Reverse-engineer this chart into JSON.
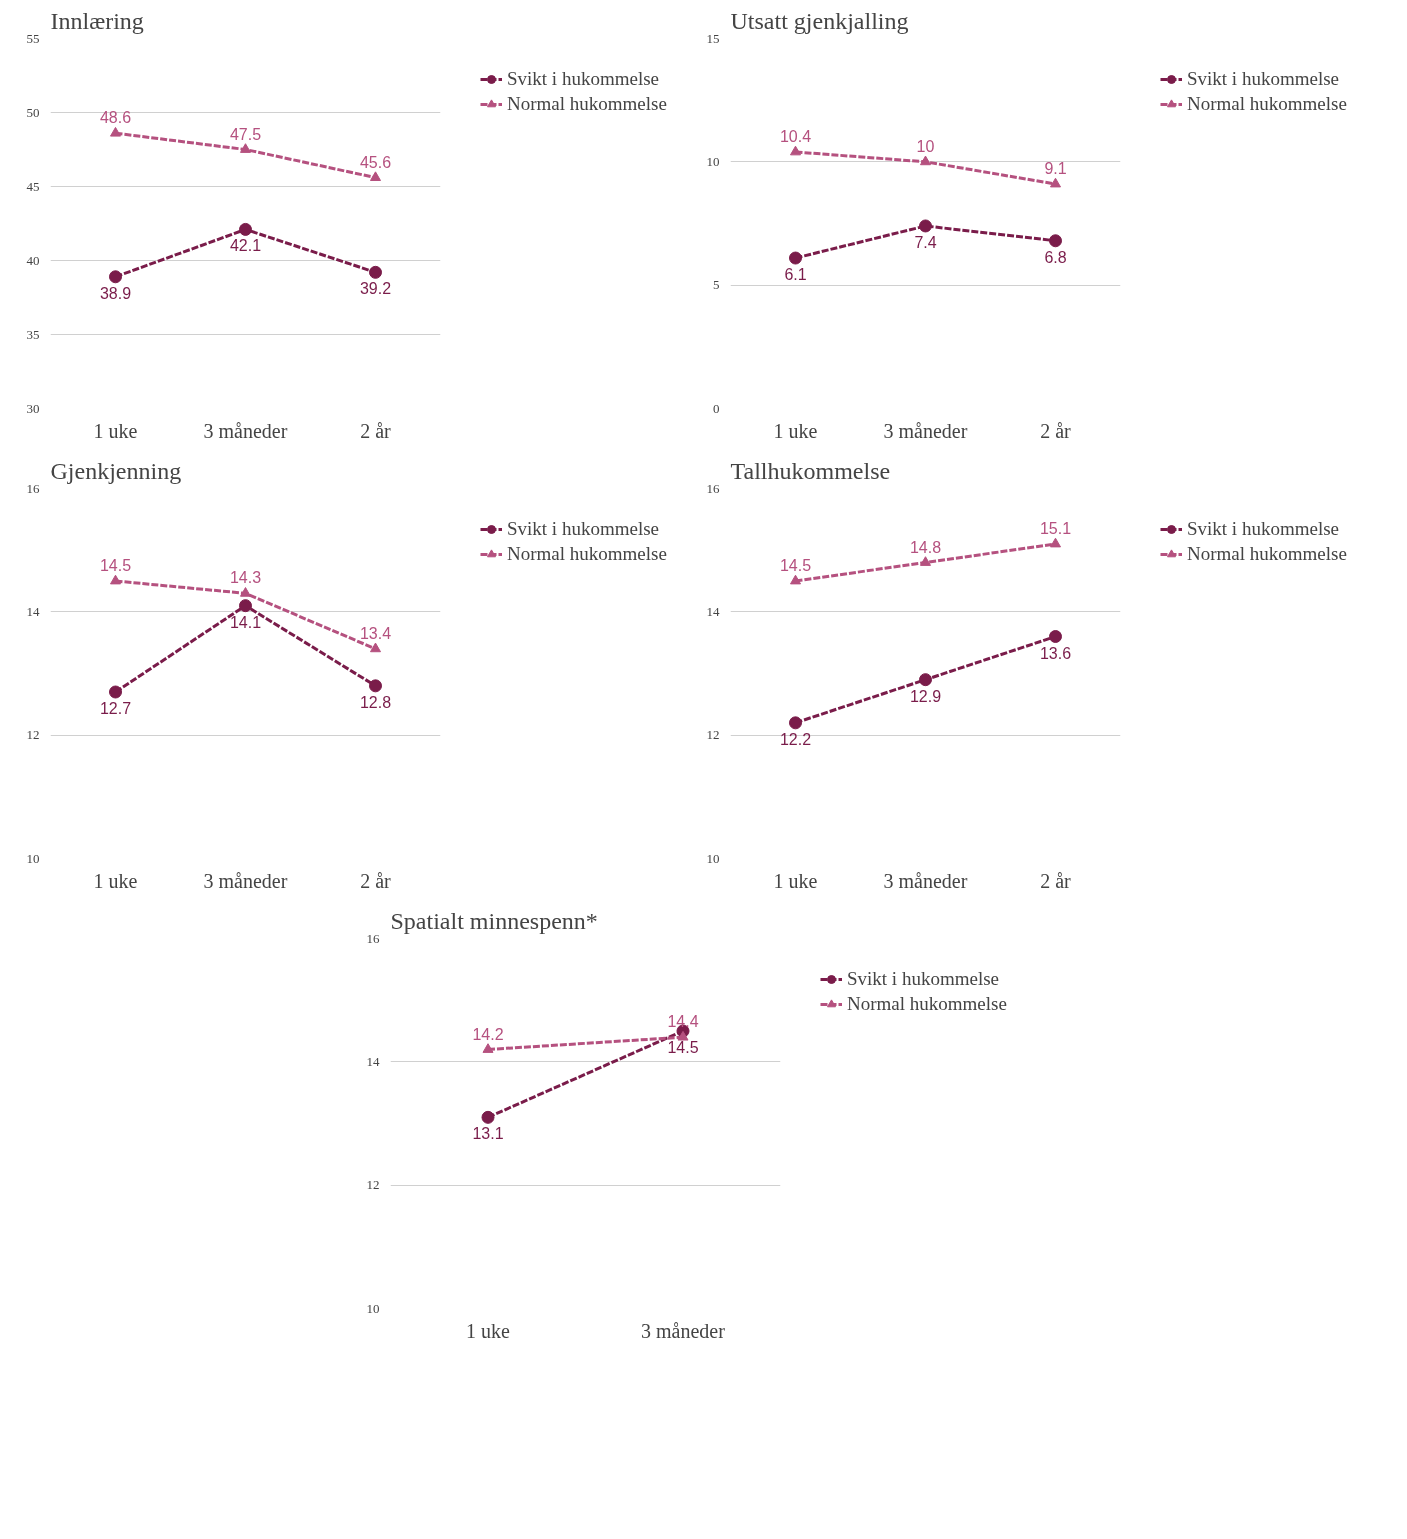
{
  "chart_data": [
    {
      "type": "line",
      "title": "Innlæring",
      "categories": [
        "1 uke",
        "3 måneder",
        "2 år"
      ],
      "ylim": [
        30,
        55
      ],
      "yticks": [
        30,
        35,
        40,
        45,
        50,
        55
      ],
      "grid": "y",
      "legend": "top right",
      "line_style": "dashed",
      "data_labels": true,
      "series": [
        {
          "name": "Svikt i hukommelse",
          "color": "#7a1c4a",
          "marker": "circle",
          "values": [
            38.9,
            42.1,
            39.2
          ]
        },
        {
          "name": "Normal hukommelse",
          "color": "#b5517f",
          "marker": "triangle",
          "values": [
            48.6,
            47.5,
            45.6
          ]
        }
      ]
    },
    {
      "type": "line",
      "title": "Utsatt gjenkjalling",
      "categories": [
        "1 uke",
        "3 måneder",
        "2 år"
      ],
      "ylim": [
        0,
        15
      ],
      "yticks": [
        0,
        5,
        10,
        15
      ],
      "grid": "y",
      "legend": "top right",
      "line_style": "dashed",
      "data_labels": true,
      "series": [
        {
          "name": "Svikt i hukommelse",
          "color": "#7a1c4a",
          "marker": "circle",
          "values": [
            6.1,
            7.4,
            6.8
          ]
        },
        {
          "name": "Normal hukommelse",
          "color": "#b5517f",
          "marker": "triangle",
          "values": [
            10.4,
            10,
            9.1
          ]
        }
      ]
    },
    {
      "type": "line",
      "title": "Gjenkjenning",
      "categories": [
        "1 uke",
        "3 måneder",
        "2 år"
      ],
      "ylim": [
        10,
        16
      ],
      "yticks": [
        10,
        12,
        14,
        16
      ],
      "grid": "y",
      "legend": "top right",
      "line_style": "dashed",
      "data_labels": true,
      "series": [
        {
          "name": "Svikt i hukommelse",
          "color": "#7a1c4a",
          "marker": "circle",
          "values": [
            12.7,
            14.1,
            12.8
          ]
        },
        {
          "name": "Normal hukommelse",
          "color": "#b5517f",
          "marker": "triangle",
          "values": [
            14.5,
            14.3,
            13.4
          ]
        }
      ]
    },
    {
      "type": "line",
      "title": "Tallhukommelse",
      "categories": [
        "1 uke",
        "3 måneder",
        "2 år"
      ],
      "ylim": [
        10,
        16
      ],
      "yticks": [
        10,
        12,
        14,
        16
      ],
      "grid": "y",
      "legend": "top right",
      "line_style": "dashed",
      "data_labels": true,
      "series": [
        {
          "name": "Svikt i hukommelse",
          "color": "#7a1c4a",
          "marker": "circle",
          "values": [
            12.2,
            12.9,
            13.6
          ]
        },
        {
          "name": "Normal hukommelse",
          "color": "#b5517f",
          "marker": "triangle",
          "values": [
            14.5,
            14.8,
            15.1
          ]
        }
      ]
    },
    {
      "type": "line",
      "title": "Spatialt minnespenn*",
      "categories": [
        "1 uke",
        "3 måneder"
      ],
      "ylim": [
        10,
        16
      ],
      "yticks": [
        10,
        12,
        14,
        16
      ],
      "grid": "y",
      "legend": "top right",
      "line_style": "dashed",
      "data_labels": true,
      "series": [
        {
          "name": "Svikt i hukommelse",
          "color": "#7a1c4a",
          "marker": "circle",
          "values": [
            13.1,
            14.5
          ]
        },
        {
          "name": "Normal hukommelse",
          "color": "#b5517f",
          "marker": "triangle",
          "values": [
            14.2,
            14.4
          ]
        }
      ]
    }
  ]
}
